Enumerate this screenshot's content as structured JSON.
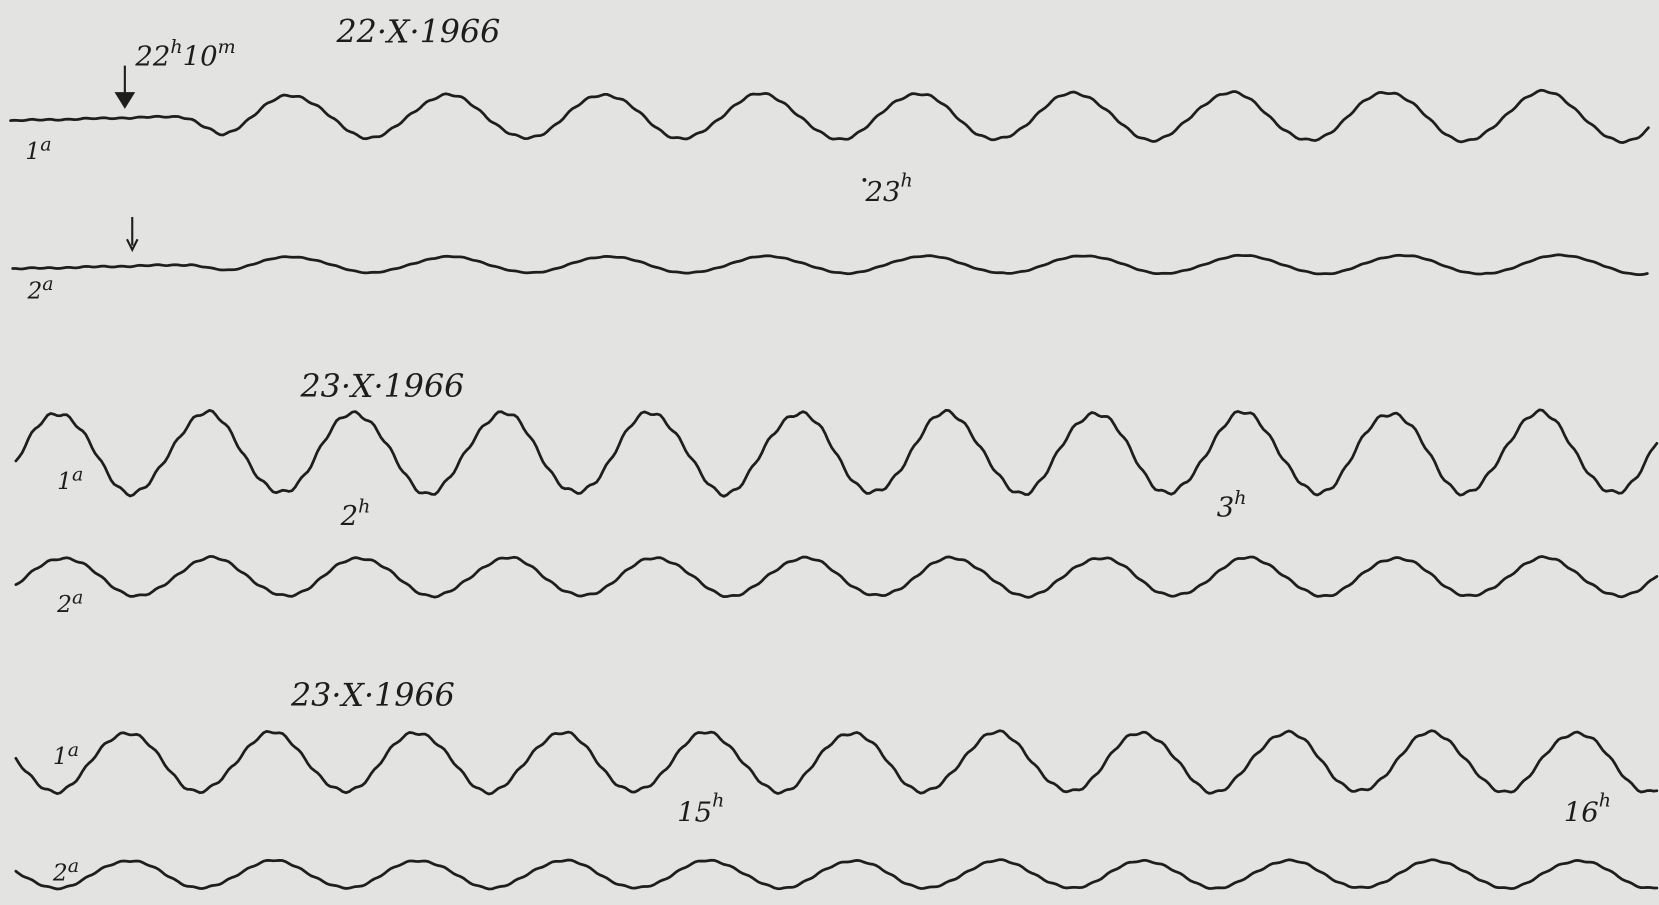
{
  "panels": [
    {
      "date": "22·X·1966",
      "traces": [
        [
          "1",
          "a"
        ],
        [
          "2",
          "a"
        ]
      ],
      "annotations": [
        [
          "22",
          "h",
          "10",
          "m"
        ],
        [
          "23",
          "h"
        ]
      ]
    },
    {
      "date": "23·X·1966",
      "traces": [
        [
          "1",
          "a"
        ],
        [
          "2",
          "a"
        ]
      ],
      "annotations": [
        [
          "2",
          "h"
        ],
        [
          "3",
          "h"
        ]
      ]
    },
    {
      "date": "23·X·1966",
      "traces": [
        [
          "1",
          "a"
        ],
        [
          "2",
          "a"
        ]
      ],
      "annotations": [
        [
          "15",
          "h"
        ],
        [
          "16",
          "h"
        ]
      ]
    }
  ]
}
